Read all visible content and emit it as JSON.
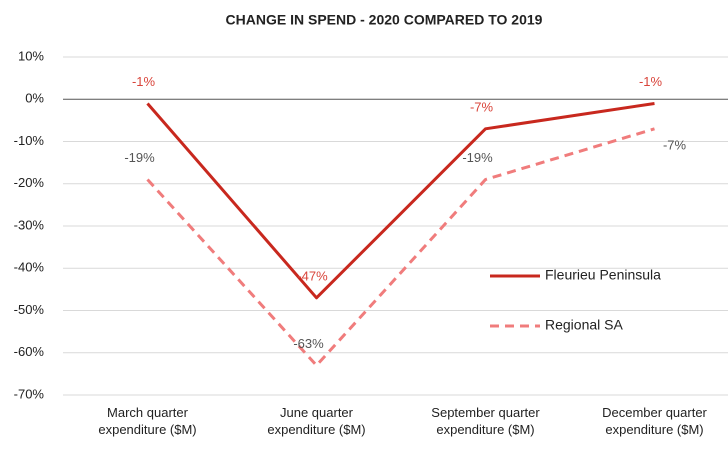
{
  "chart_data": {
    "type": "line",
    "title": "CHANGE IN SPEND - 2020 COMPARED TO 2019",
    "categories": [
      "March quarter expenditure ($M)",
      "June quarter expenditure ($M)",
      "September quarter expenditure ($M)",
      "December quarter expenditure ($M)"
    ],
    "series": [
      {
        "name": "Fleurieu Peninsula",
        "color": "#c8281e",
        "label_color": "#d9443a",
        "line_style": "solid",
        "values": [
          -1,
          -47,
          -7,
          -1
        ],
        "value_labels": [
          "-1%",
          "-47%",
          "-7%",
          "-1%"
        ]
      },
      {
        "name": "Regional SA",
        "color": "#f07c7c",
        "label_color": "#555555",
        "line_style": "dashed",
        "values": [
          -19,
          -63,
          -19,
          -7
        ],
        "value_labels": [
          "-19%",
          "-63%",
          "-19%",
          "-7%"
        ]
      }
    ],
    "ylim": [
      -70,
      10
    ],
    "yticks": [
      {
        "value": 10,
        "label": "10%"
      },
      {
        "value": 0,
        "label": "0%"
      },
      {
        "value": -10,
        "label": "-10%"
      },
      {
        "value": -20,
        "label": "-20%"
      },
      {
        "value": -30,
        "label": "-30%"
      },
      {
        "value": -40,
        "label": "-40%"
      },
      {
        "value": -50,
        "label": "-50%"
      },
      {
        "value": -60,
        "label": "-60%"
      },
      {
        "value": -70,
        "label": "-70%"
      }
    ],
    "grid": true,
    "legend": "right"
  }
}
